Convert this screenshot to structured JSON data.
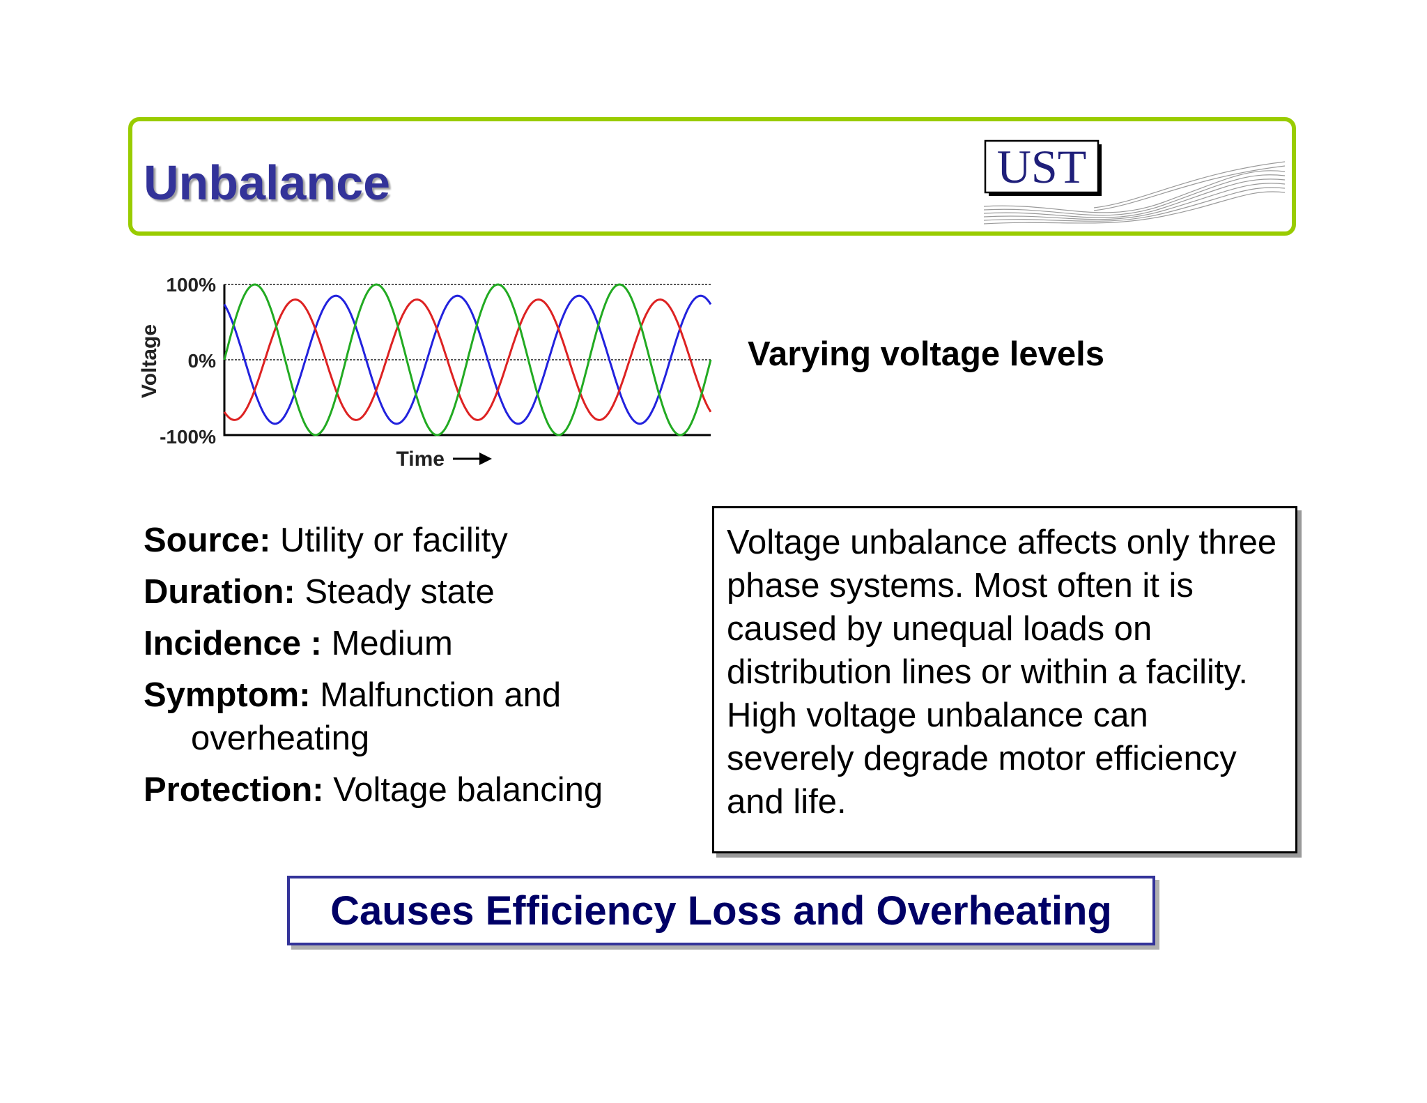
{
  "header": {
    "title": "Unbalance",
    "logo_text": "UST",
    "border_color": "#99cc00",
    "title_color": "#333399"
  },
  "chart_data": {
    "type": "line",
    "xlabel": "Time",
    "ylabel": "Voltage",
    "y_tick_labels": [
      "100%",
      "0%",
      "-100%"
    ],
    "ylim": [
      -100,
      100
    ],
    "x_axis_arrow": true,
    "series": [
      {
        "color": "#2222dd",
        "amplitude": 85,
        "cycles": 4.0,
        "phase_deg": 120
      },
      {
        "color": "#dd2222",
        "amplitude": 80,
        "cycles": 4.0,
        "phase_deg": 240
      },
      {
        "color": "#22aa22",
        "amplitude": 100,
        "cycles": 4.0,
        "phase_deg": 0
      }
    ]
  },
  "side_caption": "Varying voltage levels",
  "info": [
    {
      "label": "Source:",
      "value": " Utility or facility"
    },
    {
      "label": "Duration:",
      "value": " Steady state"
    },
    {
      "label": "Incidence :",
      "value": " Medium"
    },
    {
      "label": "Symptom:",
      "value": " Malfunction and overheating"
    },
    {
      "label": "Protection:",
      "value": " Voltage balancing"
    }
  ],
  "description": "Voltage unbalance affects only three phase systems.  Most often it is caused by unequal loads on distribution lines or within a facility. High voltage unbalance can severely degrade motor efficiency and life.",
  "banner": "Causes Efficiency Loss and Overheating"
}
